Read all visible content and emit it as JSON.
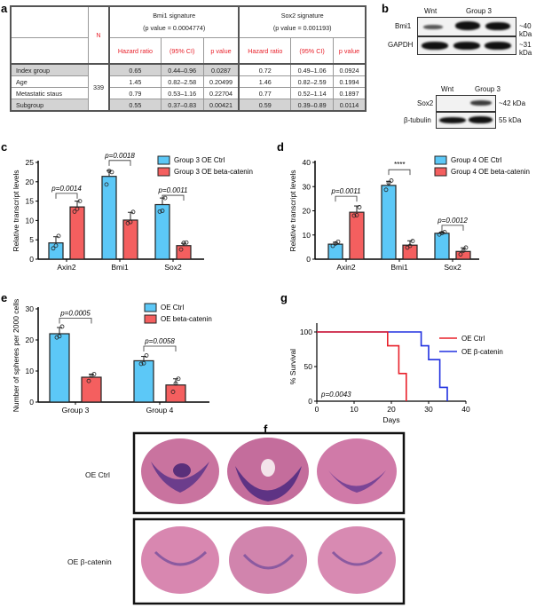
{
  "panels": {
    "a": "a",
    "b": "b",
    "c": "c",
    "d": "d",
    "e": "e",
    "f": "f",
    "g": "g"
  },
  "table": {
    "n_header": "N",
    "n_value": "339",
    "groups": [
      {
        "title": "Bmi1 signature",
        "subtitle": "(p value = 0.0004774)"
      },
      {
        "title": "Sox2 signature",
        "subtitle": "(p value = 0.001193)"
      }
    ],
    "subheaders": [
      "Hazard ratio",
      "(95% CI)",
      "p value"
    ],
    "rows": [
      {
        "label": "Index group",
        "bmi1": [
          "0.65",
          "0.44–0.96",
          "0.0287"
        ],
        "sox2": [
          "0.72",
          "0.49–1.06",
          "0.0924"
        ]
      },
      {
        "label": "Age",
        "bmi1": [
          "1.45",
          "0.82–2.58",
          "0.20499"
        ],
        "sox2": [
          "1.46",
          "0.82–2.59",
          "0.1994"
        ]
      },
      {
        "label": "Metastatic staus",
        "bmi1": [
          "0.79",
          "0.53–1.16",
          "0.22704"
        ],
        "sox2": [
          "0.77",
          "0.52–1.14",
          "0.1897"
        ]
      },
      {
        "label": "Subgroup",
        "bmi1": [
          "0.55",
          "0.37–0.83",
          "0.00421"
        ],
        "sox2": [
          "0.59",
          "0.39–0.89",
          "0.0114"
        ]
      }
    ]
  },
  "blots": {
    "top": {
      "lanes": [
        "Wnt",
        "Group 3"
      ],
      "rows": [
        {
          "label": "Bmi1",
          "size": "~40 kDa"
        },
        {
          "label": "GAPDH",
          "size": "~31 kDa"
        }
      ]
    },
    "bottom": {
      "lanes": [
        "Wnt",
        "Group 3"
      ],
      "rows": [
        {
          "label": "Sox2",
          "size": "~42 kDa"
        },
        {
          "label": "β-tubulin",
          "size": "55 kDa"
        }
      ]
    }
  },
  "histology": {
    "rows": [
      "OE Ctrl",
      "OE β-catenin"
    ]
  },
  "colors": {
    "ctrl": "#5cc8f7",
    "bcat": "#f45f5f",
    "line_ctrl": "#e8202a",
    "line_bcat": "#2030e0"
  },
  "chart_data": [
    {
      "panel": "c",
      "type": "bar",
      "categories": [
        "Axin2",
        "Bmi1",
        "Sox2"
      ],
      "ylabel": "Relative transcript levels",
      "ylim": [
        0,
        25
      ],
      "yticks": [
        0,
        5,
        10,
        15,
        20,
        25
      ],
      "series": [
        {
          "name": "Group 3 OE Ctrl",
          "values": [
            4.2,
            21.4,
            14.1
          ],
          "sd": [
            1.6,
            1.5,
            1.7
          ],
          "points": [
            [
              2.8,
              3.5,
              6.0
            ],
            [
              19.3,
              22.8,
              22.5
            ],
            [
              12.3,
              12.5,
              15.8
            ]
          ]
        },
        {
          "name": "Group 3 OE beta-catenin",
          "values": [
            13.5,
            10.1,
            3.5
          ],
          "sd": [
            1.5,
            2.0,
            0.6
          ],
          "points": [
            [
              12.3,
              13.0,
              15.0
            ],
            [
              9.3,
              9.6,
              12.2
            ],
            [
              2.5,
              4.2,
              4.3
            ]
          ]
        }
      ],
      "annotations": [
        {
          "category": 0,
          "text": "p=0.0014",
          "level": 17
        },
        {
          "category": 1,
          "text": "p=0.0018",
          "level": 25.5
        },
        {
          "category": 2,
          "text": "p=0.0011",
          "level": 16.5
        }
      ]
    },
    {
      "panel": "d",
      "type": "bar",
      "categories": [
        "Axin2",
        "Bmi1",
        "Sox2"
      ],
      "ylabel": "Relative transcript levels",
      "ylim": [
        0,
        40
      ],
      "yticks": [
        0,
        10,
        20,
        30,
        40
      ],
      "series": [
        {
          "name": "Group 4 OE Ctrl",
          "values": [
            6.2,
            30.5,
            10.7
          ],
          "sd": [
            0.8,
            1.7,
            0.5
          ],
          "points": [
            [
              5.5,
              6.5,
              7.2
            ],
            [
              28.7,
              31.5,
              32.5
            ],
            [
              10.2,
              10.8,
              11.2
            ]
          ]
        },
        {
          "name": "Group 4 OE beta-catenin",
          "values": [
            19.4,
            5.8,
            3.2
          ],
          "sd": [
            2.6,
            1.8,
            1.5
          ],
          "points": [
            [
              18.0,
              18.2,
              21.5
            ],
            [
              4.8,
              5.5,
              7.5
            ],
            [
              2.0,
              3.5,
              4.8
            ]
          ]
        }
      ],
      "annotations": [
        {
          "category": 0,
          "text": "p=0.0011",
          "level": 26
        },
        {
          "category": 1,
          "text": "****",
          "level": 37
        },
        {
          "category": 2,
          "text": "p=0.0012",
          "level": 14
        }
      ]
    },
    {
      "panel": "e",
      "type": "bar",
      "categories": [
        "Group 3",
        "Group 4"
      ],
      "ylabel": "Number of spheres per 2000 cells",
      "ylim": [
        0,
        30
      ],
      "yticks": [
        0,
        10,
        20,
        30
      ],
      "series": [
        {
          "name": "OE Ctrl",
          "values": [
            22.0,
            13.3
          ],
          "sd": [
            2.0,
            1.4
          ],
          "points": [
            [
              20.8,
              21.2,
              24.3
            ],
            [
              12.3,
              12.5,
              15.0
            ]
          ]
        },
        {
          "name": "OE beta-catenin",
          "values": [
            8.0,
            5.5
          ],
          "sd": [
            1.0,
            2.0
          ],
          "points": [
            [
              6.8,
              8.5,
              9.0
            ],
            [
              3.3,
              6.0,
              7.5
            ]
          ]
        }
      ],
      "annotations": [
        {
          "category": 0,
          "text": "p=0.0005",
          "level": 27
        },
        {
          "category": 1,
          "text": "p=0.0058",
          "level": 18
        }
      ]
    },
    {
      "panel": "g",
      "type": "line",
      "xlabel": "Days",
      "ylabel": "% Survival",
      "xlim": [
        0,
        40
      ],
      "ylim": [
        0,
        100
      ],
      "xticks": [
        0,
        10,
        20,
        30,
        40
      ],
      "yticks": [
        0,
        50,
        100
      ],
      "series": [
        {
          "name": "OE Ctrl",
          "x": [
            0,
            19,
            22,
            24
          ],
          "y": [
            100,
            80,
            40,
            0
          ]
        },
        {
          "name": "OE β-catenin",
          "x": [
            0,
            28,
            30,
            33,
            35
          ],
          "y": [
            100,
            80,
            60,
            20,
            0
          ]
        }
      ],
      "annotation": "p=0.0043"
    }
  ]
}
